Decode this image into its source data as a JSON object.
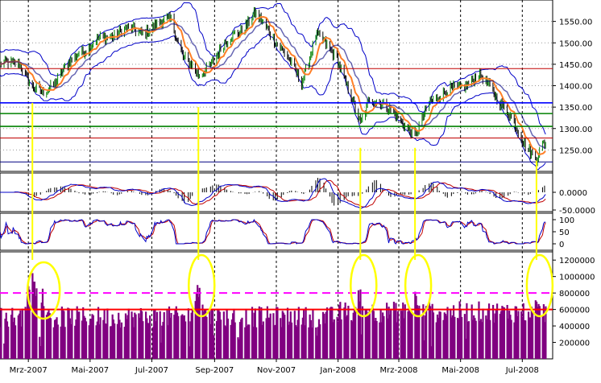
{
  "chart_data": [
    {
      "panel": "price",
      "type": "line",
      "series": [
        {
          "role": "close",
          "color": "#000000"
        },
        {
          "role": "moving-average",
          "color": "#ff7f27"
        },
        {
          "role": "bollinger-upper",
          "color": "#0000c8"
        },
        {
          "role": "bollinger-lower",
          "color": "#0000c8"
        }
      ],
      "close": [
        [
          "2007-02-01",
          1445
        ],
        [
          "2007-02-20",
          1458
        ],
        [
          "2007-03-05",
          1390
        ],
        [
          "2007-03-15",
          1385
        ],
        [
          "2007-04-01",
          1420
        ],
        [
          "2007-04-20",
          1480
        ],
        [
          "2007-05-10",
          1505
        ],
        [
          "2007-06-01",
          1530
        ],
        [
          "2007-06-20",
          1525
        ],
        [
          "2007-07-10",
          1545
        ],
        [
          "2007-07-20",
          1555
        ],
        [
          "2007-08-01",
          1470
        ],
        [
          "2007-08-16",
          1420
        ],
        [
          "2007-09-01",
          1465
        ],
        [
          "2007-09-20",
          1520
        ],
        [
          "2007-10-01",
          1540
        ],
        [
          "2007-10-10",
          1565
        ],
        [
          "2007-10-25",
          1530
        ],
        [
          "2007-11-10",
          1470
        ],
        [
          "2007-11-26",
          1410
        ],
        [
          "2007-12-10",
          1515
        ],
        [
          "2007-12-31",
          1470
        ],
        [
          "2008-01-10",
          1395
        ],
        [
          "2008-01-23",
          1310
        ],
        [
          "2008-02-01",
          1375
        ],
        [
          "2008-02-15",
          1350
        ],
        [
          "2008-03-01",
          1330
        ],
        [
          "2008-03-17",
          1275
        ],
        [
          "2008-04-01",
          1370
        ],
        [
          "2008-04-15",
          1380
        ],
        [
          "2008-05-01",
          1400
        ],
        [
          "2008-05-19",
          1420
        ],
        [
          "2008-06-01",
          1395
        ],
        [
          "2008-06-20",
          1320
        ],
        [
          "2008-07-01",
          1275
        ],
        [
          "2008-07-15",
          1230
        ],
        [
          "2008-07-22",
          1260
        ]
      ],
      "horizontal_lines": [
        {
          "value": 1440,
          "color": "#c00000"
        },
        {
          "value": 1360,
          "color": "#0000ff"
        },
        {
          "value": 1335,
          "color": "#008000"
        },
        {
          "value": 1305,
          "color": "#008000"
        },
        {
          "value": 1278,
          "color": "#c00000"
        },
        {
          "value": 1222,
          "color": "#000080"
        }
      ],
      "ylim": [
        1200,
        1600
      ],
      "yticks": [
        "1550.00",
        "1500.00",
        "1450.00",
        "1400.00",
        "1350.00",
        "1300.00",
        "1250.00"
      ],
      "grid": true
    },
    {
      "panel": "macd",
      "type": "line",
      "series": [
        {
          "role": "macd",
          "color": "#0000c8"
        },
        {
          "role": "signal",
          "color": "#c00000"
        },
        {
          "role": "histogram",
          "color": "#000000"
        }
      ],
      "yticks": [
        "0.0000",
        "-50.0000"
      ],
      "grid": true
    },
    {
      "panel": "stochastic",
      "type": "line",
      "series": [
        {
          "role": "k",
          "color": "#0000c8"
        },
        {
          "role": "d",
          "color": "#c00000"
        }
      ],
      "yticks": [
        "100",
        "50",
        "0"
      ],
      "grid": true
    },
    {
      "panel": "volume",
      "type": "bar",
      "bar_color": "#800080",
      "ylim": [
        0,
        1300000
      ],
      "yticks": [
        "1200000",
        "1000000",
        "800000",
        "600000",
        "400000",
        "200000"
      ],
      "horizontal_lines": [
        {
          "value": 800000,
          "color": "#ff00ff",
          "style": "dashed"
        },
        {
          "value": 600000,
          "color": "#ff0000",
          "style": "solid"
        }
      ],
      "volume_spikes": [
        [
          "2007-03-05",
          1150000
        ],
        [
          "2007-03-15",
          900000
        ],
        [
          "2007-08-16",
          1000000
        ],
        [
          "2008-01-23",
          950000
        ],
        [
          "2008-03-17",
          850000
        ],
        [
          "2008-07-15",
          800000
        ]
      ],
      "grid": true
    }
  ],
  "xaxis": {
    "tick_labels": [
      "Mrz-2007",
      "Mai-2007",
      "Jul-2007",
      "Sep-2007",
      "Nov-2007",
      "Jan-2008",
      "Mrz-2008",
      "Mai-2008",
      "Jul-2008"
    ],
    "tick_dates": [
      "2007-03-01",
      "2007-05-01",
      "2007-07-01",
      "2007-09-01",
      "2007-11-01",
      "2008-01-01",
      "2008-03-01",
      "2008-05-01",
      "2008-07-01"
    ],
    "start": "2007-02-01",
    "end": "2008-07-31"
  },
  "annotations": {
    "highlight_dates": [
      "2007-03-05",
      "2007-08-16",
      "2008-01-23",
      "2008-03-17",
      "2008-07-15"
    ],
    "color": "#ffff00"
  }
}
